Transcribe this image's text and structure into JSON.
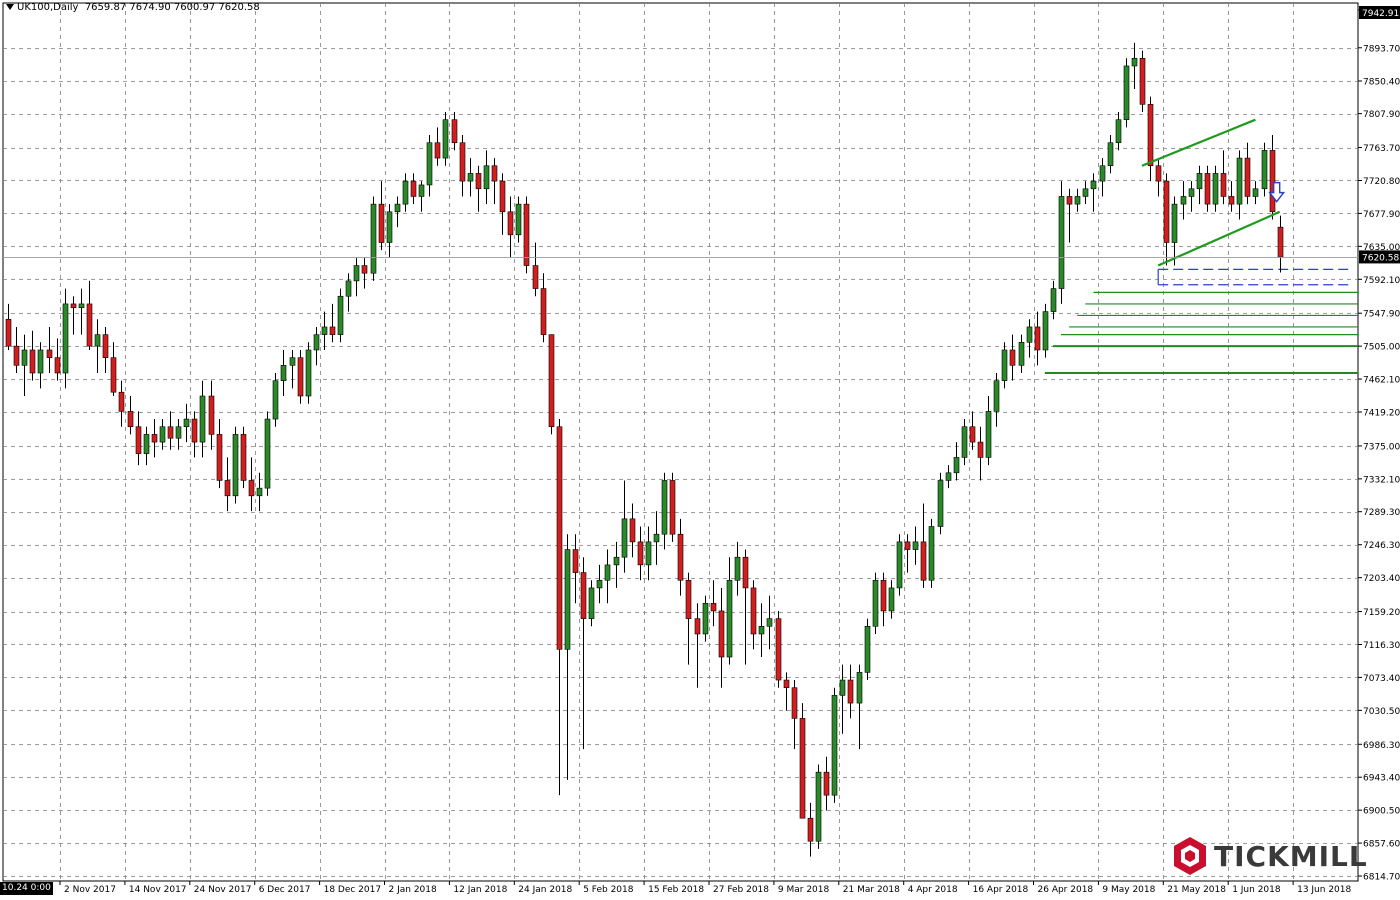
{
  "header": {
    "symbol": "UK100,Daily",
    "ohlc": "7659.87 7674.90 7600.97 7620.58"
  },
  "price_axis": {
    "labels": [
      "7942.91",
      "7893.70",
      "7850.40",
      "7807.90",
      "7763.70",
      "7720.80",
      "7677.90",
      "7635.00",
      "7592.10",
      "7547.90",
      "7505.00",
      "7462.10",
      "7419.20",
      "7375.00",
      "7332.10",
      "7289.30",
      "7246.30",
      "7203.40",
      "7159.20",
      "7116.30",
      "7073.40",
      "7030.50",
      "6986.30",
      "6943.40",
      "6900.50",
      "6857.60",
      "6814.70"
    ],
    "last_price": "7620.58",
    "top_price": "7942.91"
  },
  "time_axis": {
    "start_label": "10.24 0:00",
    "labels": [
      "2 Nov 2017",
      "14 Nov 2017",
      "24 Nov 2017",
      "6 Dec 2017",
      "18 Dec 2017",
      "2 Jan 2018",
      "12 Jan 2018",
      "24 Jan 2018",
      "5 Feb 2018",
      "15 Feb 2018",
      "27 Feb 2018",
      "9 Mar 2018",
      "21 Mar 2018",
      "4 Apr 2018",
      "16 Apr 2018",
      "26 Apr 2018",
      "9 May 2018",
      "21 May 2018",
      "1 Jun 2018",
      "13 Jun 2018"
    ]
  },
  "brand": {
    "name": "TICKMILL",
    "accent": "#c8102e"
  },
  "colors": {
    "bull": "#2a8a2a",
    "bear": "#d21e1e",
    "wick": "#000000",
    "grid": "#7f7f7f",
    "trendline": "#1f9a1f",
    "support": "#1f8a1f",
    "target": "#2b40c8"
  },
  "chart_data": {
    "type": "candlestick",
    "instrument": "UK100",
    "timeframe": "Daily",
    "ylim": [
      6814.7,
      7955
    ],
    "gridlines": true,
    "candles": [
      [
        7540,
        7560,
        7500,
        7505
      ],
      [
        7505,
        7530,
        7470,
        7480
      ],
      [
        7480,
        7520,
        7440,
        7500
      ],
      [
        7500,
        7525,
        7460,
        7470
      ],
      [
        7470,
        7510,
        7450,
        7500
      ],
      [
        7500,
        7530,
        7470,
        7490
      ],
      [
        7490,
        7515,
        7460,
        7470
      ],
      [
        7470,
        7580,
        7450,
        7560
      ],
      [
        7560,
        7570,
        7520,
        7555
      ],
      [
        7555,
        7580,
        7520,
        7560
      ],
      [
        7560,
        7590,
        7500,
        7505
      ],
      [
        7505,
        7540,
        7470,
        7520
      ],
      [
        7520,
        7530,
        7470,
        7490
      ],
      [
        7490,
        7510,
        7440,
        7445
      ],
      [
        7445,
        7460,
        7400,
        7420
      ],
      [
        7420,
        7440,
        7390,
        7400
      ],
      [
        7400,
        7420,
        7350,
        7365
      ],
      [
        7365,
        7400,
        7350,
        7390
      ],
      [
        7390,
        7410,
        7360,
        7380
      ],
      [
        7380,
        7410,
        7370,
        7400
      ],
      [
        7400,
        7420,
        7370,
        7385
      ],
      [
        7385,
        7410,
        7370,
        7400
      ],
      [
        7400,
        7430,
        7380,
        7410
      ],
      [
        7410,
        7420,
        7360,
        7380
      ],
      [
        7380,
        7460,
        7360,
        7440
      ],
      [
        7440,
        7460,
        7370,
        7390
      ],
      [
        7390,
        7410,
        7320,
        7330
      ],
      [
        7330,
        7360,
        7290,
        7310
      ],
      [
        7310,
        7400,
        7300,
        7390
      ],
      [
        7390,
        7400,
        7320,
        7330
      ],
      [
        7330,
        7360,
        7290,
        7310
      ],
      [
        7310,
        7340,
        7290,
        7320
      ],
      [
        7320,
        7420,
        7310,
        7410
      ],
      [
        7410,
        7470,
        7400,
        7460
      ],
      [
        7460,
        7500,
        7440,
        7480
      ],
      [
        7480,
        7500,
        7450,
        7490
      ],
      [
        7490,
        7500,
        7430,
        7440
      ],
      [
        7440,
        7510,
        7430,
        7500
      ],
      [
        7500,
        7530,
        7480,
        7520
      ],
      [
        7520,
        7550,
        7500,
        7530
      ],
      [
        7530,
        7560,
        7510,
        7520
      ],
      [
        7520,
        7580,
        7510,
        7570
      ],
      [
        7570,
        7600,
        7550,
        7590
      ],
      [
        7590,
        7620,
        7570,
        7610
      ],
      [
        7610,
        7620,
        7580,
        7600
      ],
      [
        7600,
        7700,
        7590,
        7690
      ],
      [
        7690,
        7720,
        7630,
        7640
      ],
      [
        7640,
        7690,
        7620,
        7680
      ],
      [
        7680,
        7700,
        7660,
        7690
      ],
      [
        7690,
        7730,
        7680,
        7720
      ],
      [
        7720,
        7730,
        7690,
        7700
      ],
      [
        7700,
        7720,
        7680,
        7715
      ],
      [
        7715,
        7780,
        7700,
        7770
      ],
      [
        7770,
        7790,
        7740,
        7750
      ],
      [
        7750,
        7810,
        7740,
        7800
      ],
      [
        7800,
        7810,
        7760,
        7770
      ],
      [
        7770,
        7780,
        7700,
        7720
      ],
      [
        7720,
        7750,
        7700,
        7730
      ],
      [
        7730,
        7740,
        7680,
        7710
      ],
      [
        7710,
        7760,
        7690,
        7740
      ],
      [
        7740,
        7750,
        7690,
        7720
      ],
      [
        7720,
        7730,
        7650,
        7680
      ],
      [
        7680,
        7700,
        7620,
        7650
      ],
      [
        7650,
        7700,
        7640,
        7690
      ],
      [
        7690,
        7700,
        7600,
        7610
      ],
      [
        7610,
        7640,
        7570,
        7580
      ],
      [
        7580,
        7600,
        7510,
        7520
      ],
      [
        7520,
        7520,
        7390,
        7400
      ],
      [
        7400,
        7410,
        6920,
        7110
      ],
      [
        7110,
        7260,
        6940,
        7240
      ],
      [
        7240,
        7260,
        7170,
        7210
      ],
      [
        7210,
        7230,
        6980,
        7150
      ],
      [
        7150,
        7200,
        7140,
        7190
      ],
      [
        7190,
        7220,
        7170,
        7200
      ],
      [
        7200,
        7240,
        7170,
        7220
      ],
      [
        7220,
        7250,
        7190,
        7230
      ],
      [
        7230,
        7330,
        7210,
        7280
      ],
      [
        7280,
        7300,
        7230,
        7250
      ],
      [
        7250,
        7270,
        7200,
        7220
      ],
      [
        7220,
        7270,
        7200,
        7250
      ],
      [
        7250,
        7290,
        7220,
        7260
      ],
      [
        7260,
        7340,
        7240,
        7330
      ],
      [
        7330,
        7340,
        7250,
        7260
      ],
      [
        7260,
        7280,
        7180,
        7200
      ],
      [
        7200,
        7210,
        7090,
        7150
      ],
      [
        7150,
        7170,
        7060,
        7130
      ],
      [
        7130,
        7180,
        7120,
        7170
      ],
      [
        7170,
        7200,
        7140,
        7160
      ],
      [
        7160,
        7190,
        7060,
        7100
      ],
      [
        7100,
        7230,
        7090,
        7200
      ],
      [
        7200,
        7250,
        7180,
        7230
      ],
      [
        7230,
        7240,
        7090,
        7190
      ],
      [
        7190,
        7200,
        7110,
        7130
      ],
      [
        7130,
        7170,
        7100,
        7140
      ],
      [
        7140,
        7180,
        7110,
        7150
      ],
      [
        7150,
        7160,
        7060,
        7070
      ],
      [
        7070,
        7080,
        7030,
        7060
      ],
      [
        7060,
        7070,
        6980,
        7020
      ],
      [
        7020,
        7040,
        6900,
        6890
      ],
      [
        6890,
        6910,
        6840,
        6860
      ],
      [
        6860,
        6960,
        6850,
        6950
      ],
      [
        6950,
        6970,
        6900,
        6920
      ],
      [
        6920,
        7060,
        6910,
        7050
      ],
      [
        7050,
        7090,
        7000,
        7070
      ],
      [
        7070,
        7090,
        7020,
        7040
      ],
      [
        7040,
        7090,
        6980,
        7080
      ],
      [
        7080,
        7150,
        7070,
        7140
      ],
      [
        7140,
        7210,
        7130,
        7200
      ],
      [
        7200,
        7210,
        7140,
        7160
      ],
      [
        7160,
        7200,
        7150,
        7190
      ],
      [
        7190,
        7260,
        7180,
        7250
      ],
      [
        7250,
        7260,
        7210,
        7240
      ],
      [
        7240,
        7270,
        7220,
        7250
      ],
      [
        7250,
        7300,
        7190,
        7200
      ],
      [
        7200,
        7280,
        7190,
        7270
      ],
      [
        7270,
        7340,
        7260,
        7330
      ],
      [
        7330,
        7350,
        7320,
        7340
      ],
      [
        7340,
        7380,
        7330,
        7360
      ],
      [
        7360,
        7410,
        7350,
        7400
      ],
      [
        7400,
        7420,
        7370,
        7380
      ],
      [
        7380,
        7400,
        7330,
        7360
      ],
      [
        7360,
        7440,
        7350,
        7420
      ],
      [
        7420,
        7470,
        7400,
        7460
      ],
      [
        7460,
        7510,
        7450,
        7500
      ],
      [
        7500,
        7520,
        7460,
        7480
      ],
      [
        7480,
        7520,
        7470,
        7510
      ],
      [
        7510,
        7540,
        7490,
        7530
      ],
      [
        7530,
        7550,
        7480,
        7500
      ],
      [
        7500,
        7560,
        7490,
        7550
      ],
      [
        7550,
        7590,
        7540,
        7580
      ],
      [
        7580,
        7720,
        7560,
        7700
      ],
      [
        7700,
        7710,
        7640,
        7690
      ],
      [
        7690,
        7710,
        7680,
        7700
      ],
      [
        7700,
        7720,
        7690,
        7710
      ],
      [
        7710,
        7730,
        7680,
        7720
      ],
      [
        7720,
        7750,
        7700,
        7740
      ],
      [
        7740,
        7780,
        7730,
        7770
      ],
      [
        7770,
        7810,
        7760,
        7800
      ],
      [
        7800,
        7880,
        7790,
        7870
      ],
      [
        7870,
        7900,
        7840,
        7880
      ],
      [
        7880,
        7890,
        7810,
        7820
      ],
      [
        7820,
        7830,
        7720,
        7740
      ],
      [
        7740,
        7750,
        7700,
        7720
      ],
      [
        7720,
        7730,
        7610,
        7640
      ],
      [
        7640,
        7700,
        7610,
        7690
      ],
      [
        7690,
        7720,
        7670,
        7700
      ],
      [
        7700,
        7720,
        7680,
        7710
      ],
      [
        7710,
        7740,
        7690,
        7730
      ],
      [
        7730,
        7740,
        7680,
        7690
      ],
      [
        7690,
        7740,
        7680,
        7730
      ],
      [
        7730,
        7760,
        7690,
        7700
      ],
      [
        7700,
        7720,
        7680,
        7690
      ],
      [
        7690,
        7760,
        7670,
        7750
      ],
      [
        7750,
        7770,
        7690,
        7700
      ],
      [
        7700,
        7720,
        7690,
        7710
      ],
      [
        7710,
        7770,
        7700,
        7760
      ],
      [
        7760,
        7780,
        7670,
        7680
      ],
      [
        7660,
        7675,
        7601,
        7621
      ]
    ]
  },
  "annotations": {
    "support_levels": [
      7470,
      7505,
      7520,
      7530,
      7545,
      7560,
      7575
    ],
    "target_zone": [
      7585,
      7605
    ],
    "channel": {
      "upper": {
        "from": [
          140,
          7740
        ],
        "to": [
          154,
          7800
        ]
      },
      "lower": {
        "from": [
          142,
          7610
        ],
        "to": [
          157,
          7680
        ]
      }
    },
    "signal": "down-arrow"
  }
}
